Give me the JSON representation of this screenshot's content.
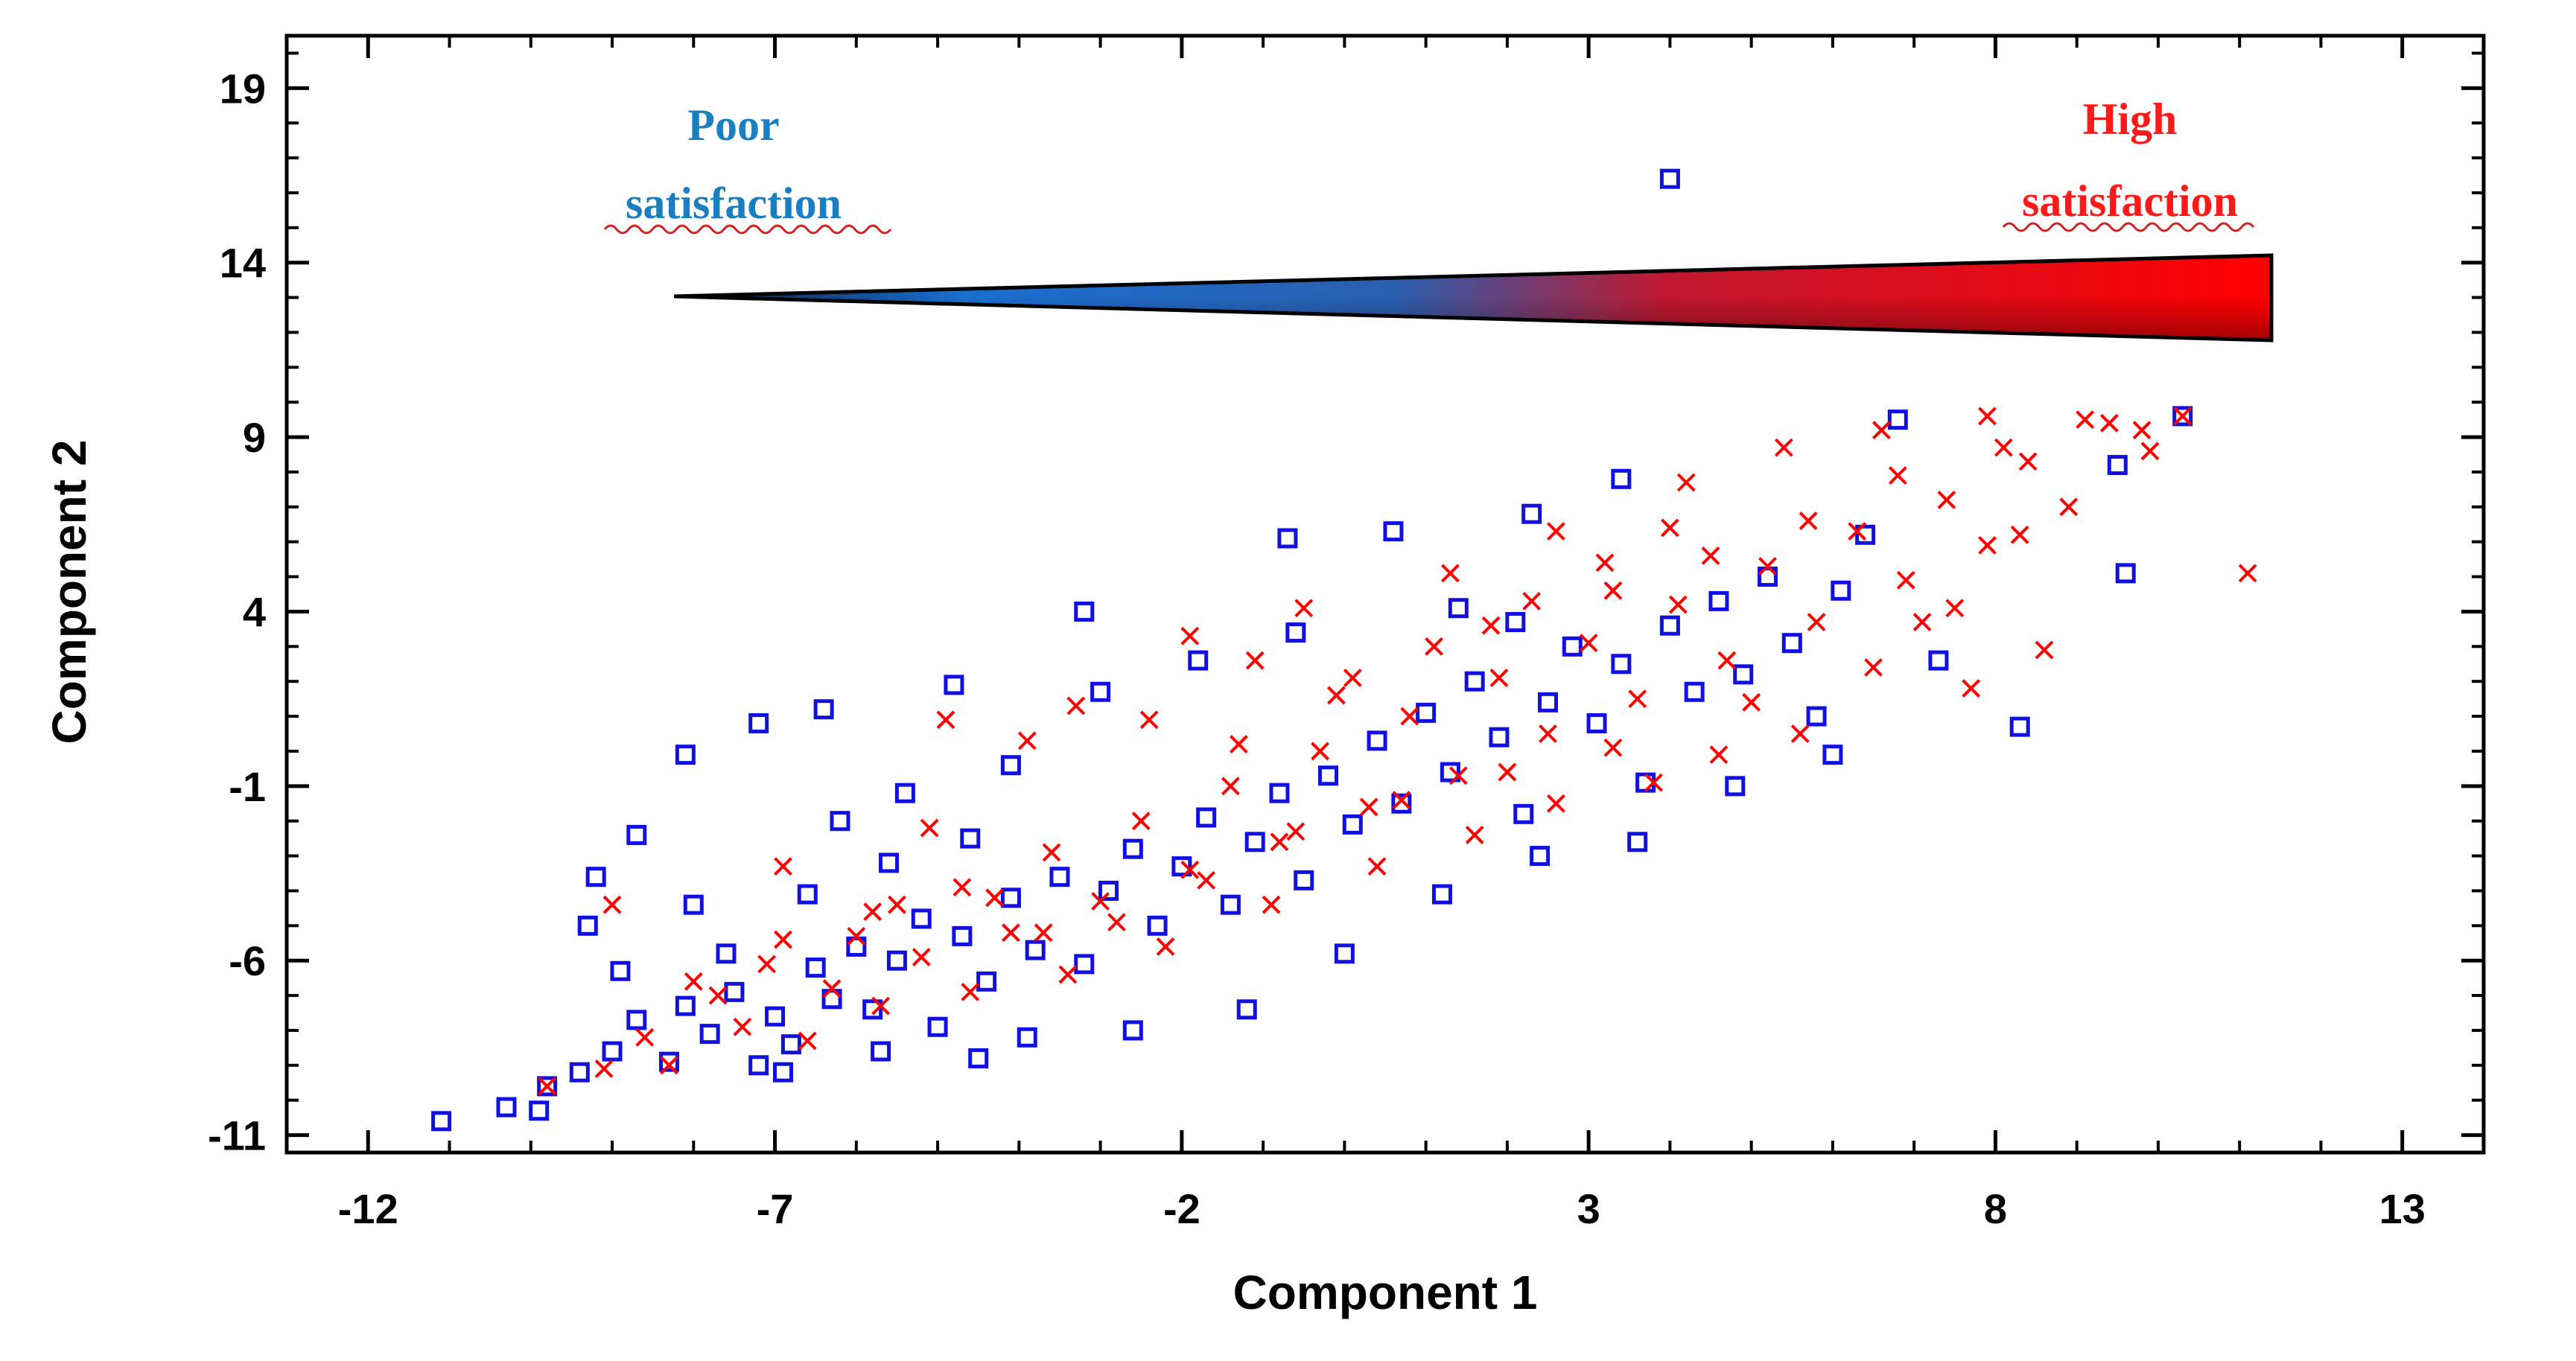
{
  "chart_data": {
    "type": "scatter",
    "title": "",
    "xlabel": "Component 1",
    "ylabel": "Component 2",
    "xlim": [
      -13,
      14
    ],
    "ylim": [
      -11.5,
      20.5
    ],
    "xticks": [
      -12,
      -7,
      -2,
      3,
      8,
      13
    ],
    "yticks": [
      -11,
      -6,
      -1,
      4,
      9,
      14,
      19
    ],
    "grid": false,
    "series": [
      {
        "name": "Poor satisfaction",
        "marker": "square",
        "color": "#1010e0",
        "points": [
          [
            -11.1,
            -10.6
          ],
          [
            -10.3,
            -10.2
          ],
          [
            -9.9,
            -10.3
          ],
          [
            -9.8,
            -9.6
          ],
          [
            -9.4,
            -9.2
          ],
          [
            -9.0,
            -8.6
          ],
          [
            -8.7,
            -7.7
          ],
          [
            -8.3,
            -8.9
          ],
          [
            -8.1,
            -7.3
          ],
          [
            -7.8,
            -8.1
          ],
          [
            -7.5,
            -6.9
          ],
          [
            -7.2,
            -9.0
          ],
          [
            -7.0,
            -7.6
          ],
          [
            -6.8,
            -8.4
          ],
          [
            -6.5,
            -6.2
          ],
          [
            -6.3,
            -7.1
          ],
          [
            -6.0,
            -5.6
          ],
          [
            -5.8,
            -7.4
          ],
          [
            -5.5,
            -6.0
          ],
          [
            -5.2,
            -4.8
          ],
          [
            -5.0,
            -7.9
          ],
          [
            -4.7,
            -5.3
          ],
          [
            -4.4,
            -6.6
          ],
          [
            -4.1,
            -4.2
          ],
          [
            -3.8,
            -5.7
          ],
          [
            -3.5,
            -3.6
          ],
          [
            -3.2,
            -6.1
          ],
          [
            -2.9,
            -4.0
          ],
          [
            -2.6,
            -2.8
          ],
          [
            -2.3,
            -5.0
          ],
          [
            -2.0,
            -3.3
          ],
          [
            -1.7,
            -1.9
          ],
          [
            -1.4,
            -4.4
          ],
          [
            -1.1,
            -2.6
          ],
          [
            -0.8,
            -1.2
          ],
          [
            -0.5,
            -3.7
          ],
          [
            -0.2,
            -0.7
          ],
          [
            0.1,
            -2.1
          ],
          [
            0.4,
            0.3
          ],
          [
            0.7,
            -1.5
          ],
          [
            1.0,
            1.1
          ],
          [
            1.3,
            -0.6
          ],
          [
            1.6,
            2.0
          ],
          [
            1.9,
            0.4
          ],
          [
            2.2,
            -1.8
          ],
          [
            2.5,
            1.4
          ],
          [
            2.8,
            3.0
          ],
          [
            3.1,
            0.8
          ],
          [
            3.4,
            2.5
          ],
          [
            3.7,
            -0.9
          ],
          [
            4.0,
            3.6
          ],
          [
            4.3,
            1.7
          ],
          [
            4.6,
            4.3
          ],
          [
            4.9,
            2.2
          ],
          [
            5.2,
            5.0
          ],
          [
            5.5,
            3.1
          ],
          [
            5.8,
            1.0
          ],
          [
            6.1,
            4.6
          ],
          [
            6.4,
            6.2
          ],
          [
            6.8,
            9.5
          ],
          [
            7.3,
            2.6
          ],
          [
            8.3,
            0.7
          ],
          [
            9.5,
            8.2
          ],
          [
            9.6,
            5.1
          ],
          [
            10.3,
            9.6
          ],
          [
            4.0,
            16.4
          ],
          [
            3.4,
            7.8
          ],
          [
            2.3,
            6.8
          ],
          [
            0.6,
            6.3
          ],
          [
            -0.7,
            6.1
          ],
          [
            -3.2,
            4.0
          ],
          [
            -4.8,
            1.9
          ],
          [
            -6.4,
            1.2
          ],
          [
            -7.2,
            0.8
          ],
          [
            -8.1,
            -0.1
          ],
          [
            -8.7,
            -2.4
          ],
          [
            -9.2,
            -3.6
          ],
          [
            -9.3,
            -5.0
          ],
          [
            -8.0,
            -4.4
          ],
          [
            -6.2,
            -2.0
          ],
          [
            -5.4,
            -1.2
          ],
          [
            -4.1,
            -0.4
          ],
          [
            -3.0,
            1.7
          ],
          [
            -1.8,
            2.6
          ],
          [
            -0.6,
            3.4
          ],
          [
            1.4,
            4.1
          ],
          [
            2.1,
            3.7
          ],
          [
            -3.9,
            -8.2
          ],
          [
            -2.6,
            -8.0
          ],
          [
            -1.2,
            -7.4
          ],
          [
            0.0,
            -5.8
          ],
          [
            1.2,
            -4.1
          ],
          [
            2.4,
            -3.0
          ],
          [
            3.6,
            -2.6
          ],
          [
            4.8,
            -1.0
          ],
          [
            6.0,
            -0.1
          ],
          [
            -6.9,
            -9.2
          ],
          [
            -5.7,
            -8.6
          ],
          [
            -4.5,
            -8.8
          ],
          [
            -8.9,
            -6.3
          ],
          [
            -7.6,
            -5.8
          ],
          [
            -6.6,
            -4.1
          ],
          [
            -5.6,
            -3.2
          ],
          [
            -4.6,
            -2.5
          ]
        ]
      },
      {
        "name": "High satisfaction",
        "marker": "x",
        "color": "#ff0000",
        "points": [
          [
            -9.1,
            -9.1
          ],
          [
            -8.6,
            -8.2
          ],
          [
            -8.0,
            -6.6
          ],
          [
            -7.4,
            -7.9
          ],
          [
            -6.9,
            -5.4
          ],
          [
            -6.3,
            -6.8
          ],
          [
            -5.8,
            -4.6
          ],
          [
            -5.2,
            -5.9
          ],
          [
            -4.7,
            -3.9
          ],
          [
            -4.1,
            -5.2
          ],
          [
            -3.6,
            -2.9
          ],
          [
            -3.0,
            -4.3
          ],
          [
            -2.5,
            -2.0
          ],
          [
            -1.9,
            -3.4
          ],
          [
            -1.4,
            -1.0
          ],
          [
            -0.8,
            -2.6
          ],
          [
            -0.3,
            0.0
          ],
          [
            0.3,
            -1.6
          ],
          [
            0.8,
            1.0
          ],
          [
            1.4,
            -0.7
          ],
          [
            1.9,
            2.1
          ],
          [
            2.5,
            0.5
          ],
          [
            3.0,
            3.1
          ],
          [
            3.6,
            1.5
          ],
          [
            4.1,
            4.2
          ],
          [
            4.7,
            2.6
          ],
          [
            5.2,
            5.3
          ],
          [
            5.8,
            3.7
          ],
          [
            6.3,
            6.3
          ],
          [
            6.9,
            4.9
          ],
          [
            7.4,
            7.2
          ],
          [
            7.9,
            5.9
          ],
          [
            8.4,
            8.3
          ],
          [
            8.9,
            7.0
          ],
          [
            9.4,
            9.4
          ],
          [
            9.9,
            8.6
          ],
          [
            10.3,
            9.6
          ],
          [
            11.1,
            5.1
          ],
          [
            8.6,
            2.9
          ],
          [
            7.7,
            1.8
          ],
          [
            7.1,
            3.7
          ],
          [
            5.6,
            0.5
          ],
          [
            4.6,
            -0.1
          ],
          [
            3.8,
            -0.9
          ],
          [
            2.6,
            -1.5
          ],
          [
            1.6,
            -2.4
          ],
          [
            0.4,
            -3.3
          ],
          [
            -0.9,
            -4.4
          ],
          [
            -2.2,
            -5.6
          ],
          [
            -3.4,
            -6.4
          ],
          [
            -4.6,
            -6.9
          ],
          [
            -5.7,
            -7.3
          ],
          [
            -6.6,
            -8.3
          ],
          [
            -9.8,
            -9.6
          ],
          [
            -9.0,
            -4.4
          ],
          [
            -6.9,
            -3.3
          ],
          [
            -5.1,
            -2.2
          ],
          [
            -3.9,
            0.3
          ],
          [
            -2.4,
            0.9
          ],
          [
            -1.1,
            2.6
          ],
          [
            -0.5,
            4.1
          ],
          [
            1.3,
            5.1
          ],
          [
            2.6,
            6.3
          ],
          [
            4.2,
            7.7
          ],
          [
            5.4,
            8.7
          ],
          [
            6.6,
            9.2
          ],
          [
            7.9,
            9.6
          ],
          [
            9.1,
            9.5
          ],
          [
            9.8,
            9.2
          ],
          [
            8.3,
            6.2
          ],
          [
            7.5,
            4.1
          ],
          [
            6.5,
            2.4
          ],
          [
            5.0,
            1.4
          ],
          [
            3.3,
            0.1
          ],
          [
            2.0,
            -0.6
          ],
          [
            0.7,
            -1.4
          ],
          [
            -0.6,
            -2.3
          ],
          [
            -1.7,
            -3.7
          ],
          [
            -2.8,
            -4.9
          ],
          [
            -3.7,
            -5.2
          ],
          [
            -4.3,
            -4.2
          ],
          [
            -5.5,
            -4.4
          ],
          [
            -6.0,
            -5.3
          ],
          [
            -7.1,
            -6.1
          ],
          [
            -7.7,
            -7.0
          ],
          [
            -8.3,
            -9.0
          ],
          [
            -4.9,
            0.9
          ],
          [
            -3.3,
            1.3
          ],
          [
            -1.9,
            3.3
          ],
          [
            0.1,
            2.1
          ],
          [
            1.8,
            3.6
          ],
          [
            3.3,
            4.6
          ],
          [
            4.5,
            5.6
          ],
          [
            5.7,
            6.6
          ],
          [
            6.8,
            7.9
          ],
          [
            8.1,
            8.7
          ],
          [
            4.0,
            6.4
          ],
          [
            3.2,
            5.4
          ],
          [
            2.3,
            4.3
          ],
          [
            1.1,
            3.0
          ],
          [
            -0.1,
            1.6
          ],
          [
            -1.3,
            0.2
          ]
        ]
      }
    ],
    "annotations": [
      {
        "lines": [
          "Poor",
          "satisfaction"
        ],
        "color": "#1a7fc2"
      },
      {
        "lines": [
          "High",
          "satisfaction"
        ],
        "color": "#ff1a1a"
      }
    ],
    "gradient_bar": {
      "from_color": "#1a6fd0",
      "to_color": "#ff0000",
      "label": "satisfaction scale"
    }
  }
}
